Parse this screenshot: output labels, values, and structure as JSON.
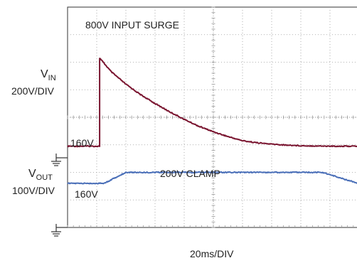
{
  "chart_data": {
    "type": "line",
    "annotations": {
      "input_surge": "800V INPUT SURGE",
      "clamp": "200V CLAMP",
      "vin_baseline": "160V",
      "vout_baseline": "160V"
    },
    "channel_labels": {
      "vin": {
        "main": "V",
        "sub": "IN",
        "scale": "200V/DIV"
      },
      "vout": {
        "main": "V",
        "sub": "OUT",
        "scale": "100V/DIV"
      }
    },
    "xlabel": "20ms/DIV",
    "divisions": {
      "x": 10,
      "y": 8
    },
    "grid": true,
    "colors": {
      "vin": "#7a1530",
      "vout": "#4a6fb8",
      "frame": "#333333",
      "grid": "#9a9a9a",
      "plot_background": "#ffffff",
      "page_background": "#ffffff"
    },
    "series": [
      {
        "channel": "vin",
        "unit": "V",
        "points": [
          [
            0,
            160
          ],
          [
            20,
            160
          ],
          [
            22,
            160
          ],
          [
            22,
            800
          ],
          [
            30,
            700
          ],
          [
            40,
            610
          ],
          [
            50,
            535
          ],
          [
            60,
            470
          ],
          [
            70,
            410
          ],
          [
            80,
            355
          ],
          [
            90,
            305
          ],
          [
            100,
            265
          ],
          [
            110,
            230
          ],
          [
            120,
            200
          ],
          [
            130,
            185
          ],
          [
            140,
            175
          ],
          [
            150,
            168
          ],
          [
            160,
            164
          ],
          [
            170,
            162
          ],
          [
            180,
            160
          ],
          [
            200,
            160
          ]
        ]
      },
      {
        "channel": "vout",
        "unit": "V",
        "points": [
          [
            0,
            160
          ],
          [
            25,
            160
          ],
          [
            40,
            200
          ],
          [
            80,
            200
          ],
          [
            120,
            200
          ],
          [
            160,
            200
          ],
          [
            175,
            200
          ],
          [
            190,
            175
          ],
          [
            200,
            160
          ]
        ]
      }
    ]
  }
}
